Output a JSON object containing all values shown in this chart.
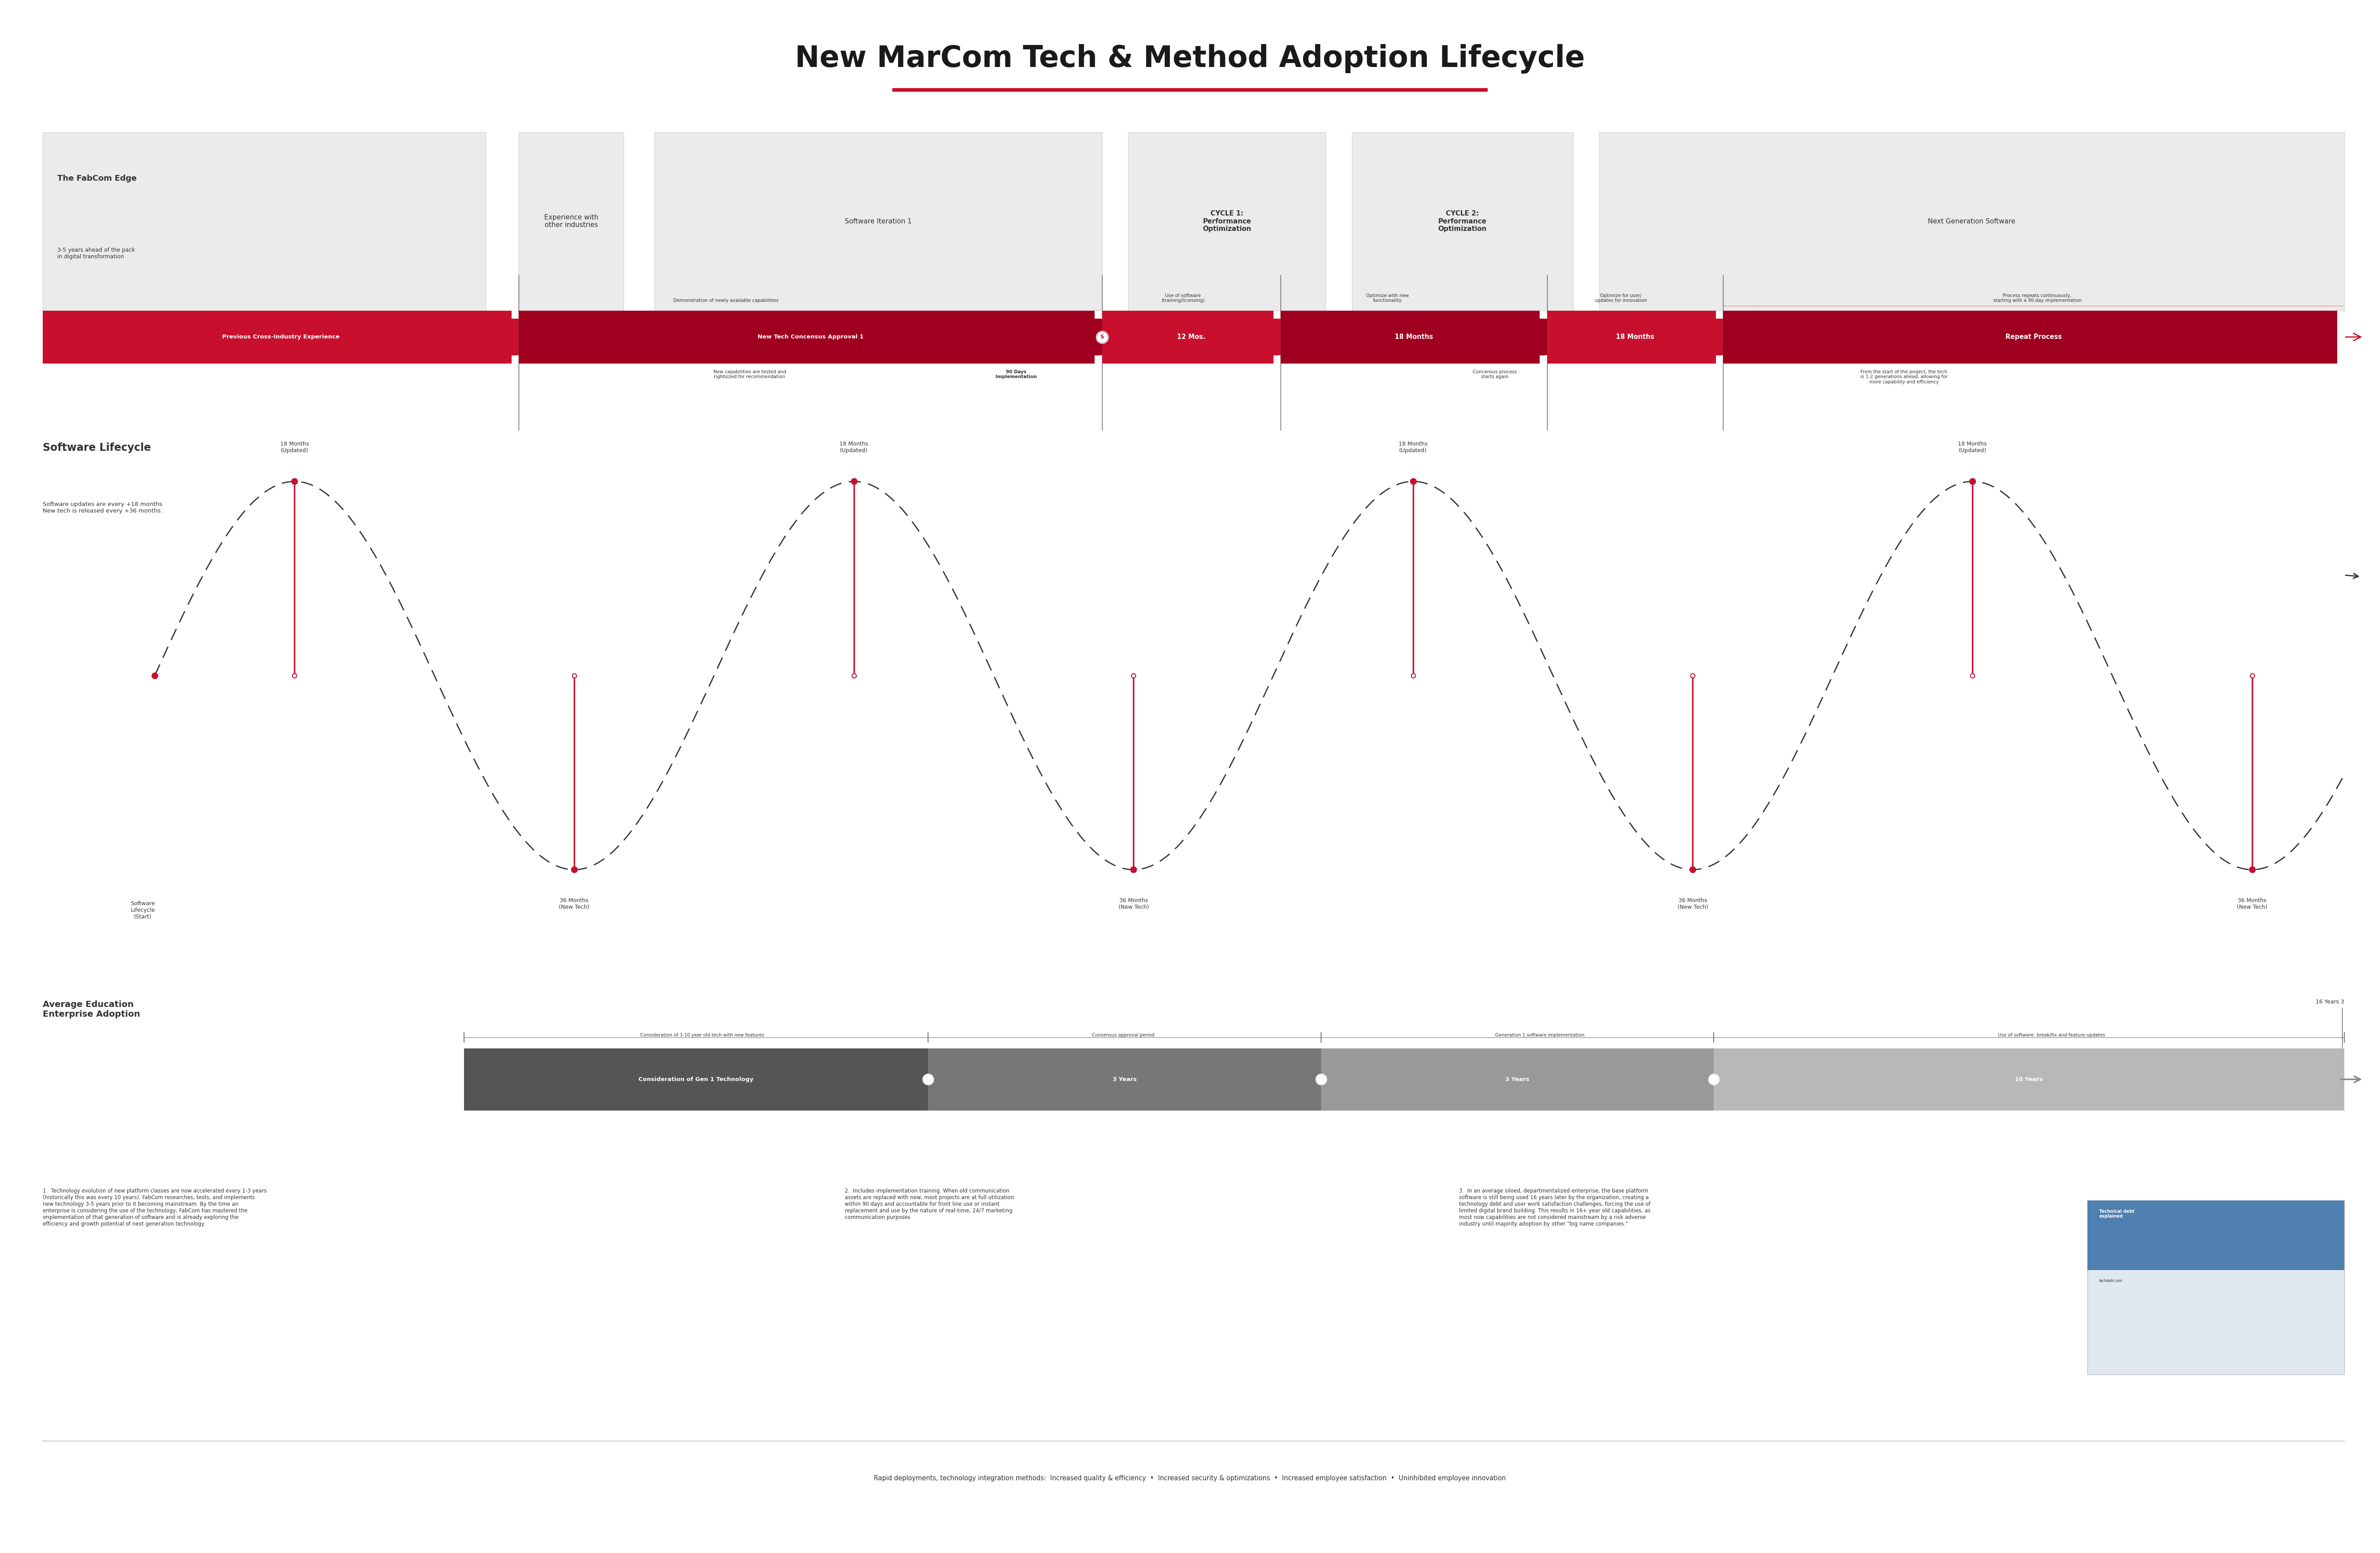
{
  "title": "New MarCom Tech & Method Adoption Lifecycle",
  "title_fontsize": 48,
  "title_color": "#1a1a1a",
  "bg_color": "#ffffff",
  "red_color": "#c8102e",
  "dark_gray": "#333333",
  "mid_gray": "#888888",
  "light_gray": "#cccccc",
  "lighter_gray": "#ebebeb",
  "section1_title": "The FabCom Edge",
  "section1_sub": "3-5 years ahead of the pack\nin digital transformation",
  "software_lifecycle_title": "Software Lifecycle",
  "software_lifecycle_sub": "Software updates are every +18 months\nNew tech is released every +36 months.",
  "adoption_title": "Average Education\nEnterprise Adoption",
  "footnote1": "1.  Technology evolution of new platform classes are now accelerated every 1-3 years\n(historically this was every 10 years). FabCom researches, tests, and implements\nnew technology 3-5 years prior to it becoming mainstream. By the time an\nenterprise is considering the use of the technology, FabCom has mastered the\nimplementation of that generation of software and is already exploring the\nefficiency and growth potential of next generation technology.",
  "footnote2": "2.  Includes implementation training. When old communication\nassets are replaced with new, most projects are at full utilization\nwithin 90 days and accountable for front line use or instant\nreplacement and use by the nature of real-time, 24/7 marketing\ncommunication purposes",
  "footnote3": "3.  In an average siloed, departmentalized enterprise, the base platform\nsoftware is still being used 16 years later by the organization, creating a\ntechnology debt and user work satisfaction challenges, forcing the use of\nlimited digital brand building. This results in 16+ year old capabilities, as\nmost now capabilities are not considered mainstream by a risk adverse\nindustry until majority adoption by other \"big name companies.\"",
  "bottom_text": "Rapid deployments, technology integration methods:  Increased quality & efficiency  •  Increased security & optimizations  •  Increased employee satisfaction  •  Uninhibited employee innovation",
  "16years_label": "16 Years 3"
}
